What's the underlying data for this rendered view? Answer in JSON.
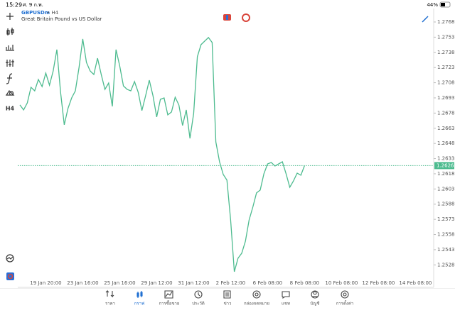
{
  "status_bar": {
    "time": "15:29",
    "date": "ศ. 9 ก.พ.",
    "battery": "44%"
  },
  "header": {
    "symbol": "GBPUSDm",
    "timeframe": "• H4",
    "description": "Great Britain Pound vs US Dollar"
  },
  "toolbar": {
    "timeframe": "H4"
  },
  "chart_data": {
    "type": "line",
    "color": "#4dbb8f",
    "categories": [
      null,
      null,
      null,
      null,
      null,
      null,
      null,
      "19 Jan 20:00",
      null,
      null,
      null,
      null,
      null,
      null,
      null,
      null,
      null,
      "23 Jan 16:00",
      null,
      null,
      null,
      null,
      null,
      null,
      null,
      null,
      null,
      "25 Jan 16:00",
      null,
      null,
      null,
      null,
      null,
      null,
      null,
      null,
      null,
      "29 Jan 12:00",
      null,
      null,
      null,
      null,
      null,
      null,
      null,
      null,
      null,
      "31 Jan 12:00",
      null,
      null,
      null,
      null,
      null,
      null,
      null,
      null,
      null,
      "2 Feb 12:00",
      null,
      null,
      null,
      null,
      null,
      null,
      null,
      null,
      null,
      "6 Feb 08:00",
      null,
      null,
      null,
      null,
      null,
      null,
      null,
      null,
      null,
      "8 Feb 08:00",
      null,
      null,
      null,
      null,
      null,
      null,
      null,
      null,
      null,
      "10 Feb 08:00",
      null,
      null,
      null,
      null,
      null,
      null,
      null,
      null,
      null,
      "12 Feb 08:00",
      null,
      null,
      null,
      null,
      null,
      null,
      null,
      null,
      null,
      "14 Feb 08:00",
      null,
      null,
      null,
      null,
      null
    ],
    "values": [
      1.2686,
      1.26811,
      1.26881,
      1.27035,
      1.27,
      1.27112,
      1.27042,
      1.27175,
      1.27056,
      1.27196,
      1.27407,
      1.26986,
      1.26664,
      1.26825,
      1.2693,
      1.27,
      1.27231,
      1.27512,
      1.2728,
      1.27196,
      1.27161,
      1.27322,
      1.27161,
      1.27014,
      1.27077,
      1.26846,
      1.27407,
      1.27245,
      1.27049,
      1.27014,
      1.27,
      1.27091,
      1.26986,
      1.26804,
      1.26951,
      1.27105,
      1.26951,
      1.26741,
      1.26916,
      1.2693,
      1.26762,
      1.2679,
      1.26937,
      1.2686,
      1.26657,
      1.26811,
      1.2653,
      1.26776,
      1.27337,
      1.27456,
      1.27491,
      1.27526,
      1.27477,
      1.26495,
      1.26299,
      1.26173,
      1.26117,
      1.25724,
      1.25212,
      1.25346,
      1.25395,
      1.25514,
      1.25724,
      1.2585,
      1.25991,
      1.26019,
      1.2618,
      1.26278,
      1.26292,
      1.26257,
      1.26278,
      1.26299,
      1.2618,
      1.26047,
      1.2611,
      1.26187,
      1.26166,
      1.26261,
      null,
      null,
      null,
      null,
      null,
      null,
      null,
      null,
      null,
      null,
      null,
      null,
      null,
      null,
      null,
      null,
      null,
      null,
      null,
      null,
      null,
      null,
      null,
      null,
      null,
      null,
      null,
      null,
      null,
      null,
      null,
      null,
      null,
      null,
      null
    ],
    "current_price": 1.26261,
    "ylim": [
      1.25058,
      1.27792
    ],
    "yticks": [
      {
        "value": 1.2768,
        "label": "1.27680"
      },
      {
        "value": 1.2753,
        "label": "1.27530"
      },
      {
        "value": 1.2738,
        "label": "1.27380"
      },
      {
        "value": 1.2723,
        "label": "1.27230"
      },
      {
        "value": 1.2708,
        "label": "1.27080"
      },
      {
        "value": 1.2693,
        "label": "1.26930"
      },
      {
        "value": 1.2678,
        "label": "1.26780"
      },
      {
        "value": 1.2663,
        "label": "1.26630"
      },
      {
        "value": 1.2648,
        "label": "1.26480"
      },
      {
        "value": 1.2633,
        "label": "1.26330"
      },
      {
        "value": 1.2618,
        "label": "1.26180"
      },
      {
        "value": 1.2603,
        "label": "1.26030"
      },
      {
        "value": 1.2588,
        "label": "1.25880"
      },
      {
        "value": 1.2573,
        "label": "1.25730"
      },
      {
        "value": 1.2558,
        "label": "1.25580"
      },
      {
        "value": 1.2543,
        "label": "1.25430"
      },
      {
        "value": 1.2528,
        "label": "1.25280"
      }
    ]
  },
  "nav": [
    "ราคา",
    "กราฟ",
    "การซื้อขาย",
    "ประวัติ",
    "ข่าว",
    "กล่องจดหมาย",
    "แชท",
    "บัญชี",
    "การตั้งค่า"
  ]
}
